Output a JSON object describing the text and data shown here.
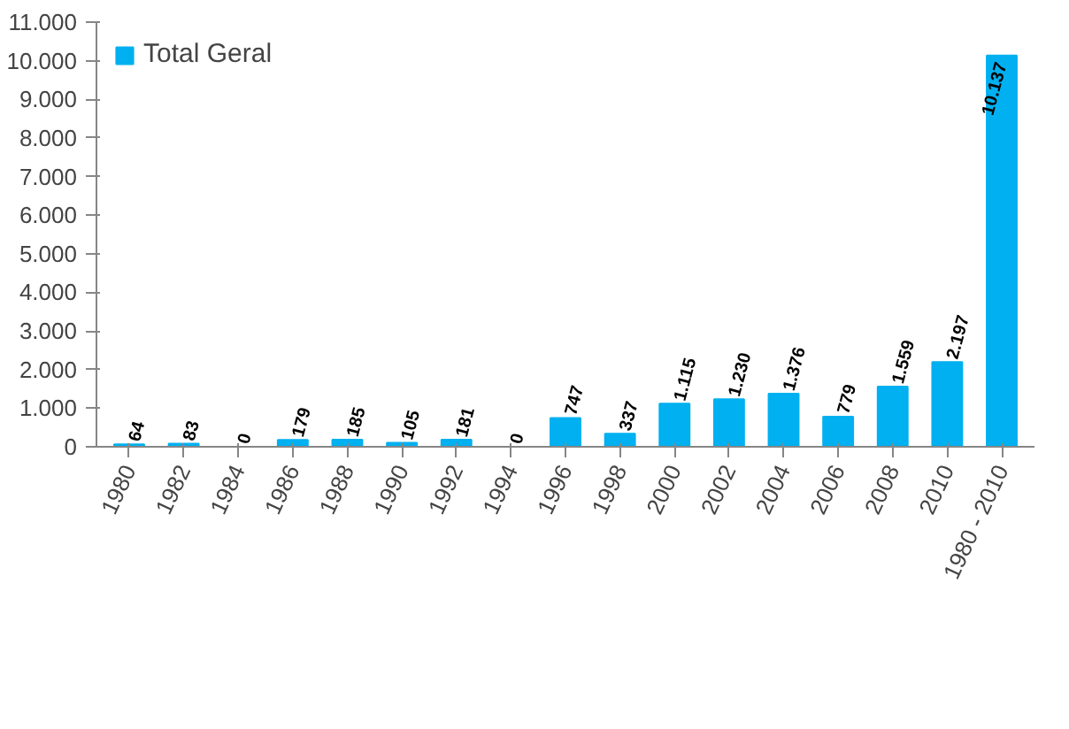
{
  "chart_data": {
    "type": "bar",
    "categories": [
      "1980",
      "1982",
      "1984",
      "1986",
      "1988",
      "1990",
      "1992",
      "1994",
      "1996",
      "1998",
      "2000",
      "2002",
      "2004",
      "2006",
      "2008",
      "2010",
      "1980 - 2010"
    ],
    "series": [
      {
        "name": "Total Geral",
        "color": "#00b0f0",
        "values": [
          64,
          83,
          0,
          179,
          185,
          105,
          181,
          0,
          747,
          337,
          1115,
          1230,
          1376,
          779,
          1559,
          2197,
          10137
        ],
        "value_labels": [
          "64",
          "83",
          "0",
          "179",
          "185",
          "105",
          "181",
          "0",
          "747",
          "337",
          "1.115",
          "1.230",
          "1.376",
          "779",
          "1.559",
          "2.197",
          "10.137"
        ]
      }
    ],
    "ylim": [
      0,
      11000
    ],
    "yticks": [
      0,
      {
        "value": 1000,
        "label": "1.000"
      },
      {
        "value": 2000,
        "label": "2.000"
      },
      {
        "value": 3000,
        "label": "3.000"
      },
      {
        "value": 4000,
        "label": "4.000"
      },
      {
        "value": 5000,
        "label": "5.000"
      },
      {
        "value": 6000,
        "label": "6.000"
      },
      {
        "value": 7000,
        "label": "7.000"
      },
      {
        "value": 8000,
        "label": "8.000"
      },
      {
        "value": 9000,
        "label": "9.000"
      },
      {
        "value": 10000,
        "label": "10.000"
      },
      {
        "value": 11000,
        "label": "11.000"
      }
    ],
    "grid": false,
    "legend": "top left"
  }
}
